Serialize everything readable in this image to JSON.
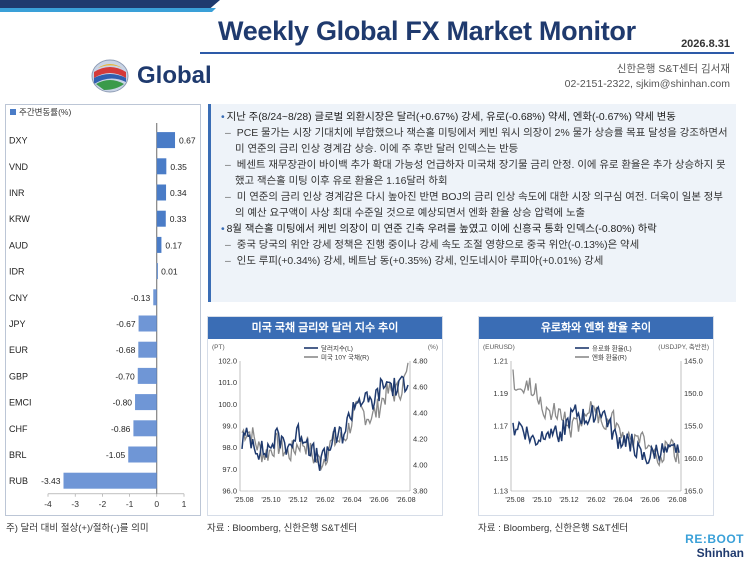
{
  "header": {
    "title": "Weekly Global FX Market Monitor",
    "date": "2026.8.31",
    "brand": "Global",
    "author_line1": "신한은행 S&T센터 김서재",
    "author_line2": "02-2151-2322, sjkim@shinhan.com"
  },
  "colors": {
    "navy": "#1f3a6e",
    "accent": "#3a6db5",
    "bar": "#4a7cc7",
    "bar_neg": "#6f96d6",
    "grey_line": "#8a8a8a"
  },
  "bar_chart": {
    "legend": "주간변동률(%)",
    "footnote": "주) 달러 대비 절상(+)/절하(-)를 의미"
  },
  "summary": {
    "items": [
      {
        "level": 1,
        "text": "지난 주(8/24~8/28) 글로벌 외환시장은 달러(+0.67%) 강세, 유로(-0.68%) 약세, 엔화(-0.67%) 약세 변동"
      },
      {
        "level": 2,
        "text": "PCE 물가는 시장 기대치에 부합했으나 잭슨홀 미팅에서 케빈 워시 의장이 2% 물가 상승률 목표 달성을 강조하면서 미 연준의 금리 인상 경계감 상승. 이에 주 후반 달러 인덱스는 반등"
      },
      {
        "level": 2,
        "text": "베센트 재무장관이 바이백 추가 확대 가능성 언급하자 미국채 장기물 금리 안정. 이에 유로 환율은 추가 상승하지 못했고 잭슨홀 미팅 이후 유로 환율은 1.16달러 하회"
      },
      {
        "level": 2,
        "text": "미 연준의 금리 인상 경계감은 다시 높아진 반면 BOJ의 금리 인상 속도에 대한 시장 의구심 여전. 더욱이 일본 정부의 예산 요구액이 사상 최대 수준일 것으로 예상되면서 엔화 환율 상승 압력에 노출"
      },
      {
        "level": 1,
        "text": "8월 잭슨홀 미팅에서 케빈 의장이 미 연준 긴축 우려를 높였고 이에 신흥국 통화 인덱스(-0.80%) 하락"
      },
      {
        "level": 2,
        "text": "중국 당국의 위안 강세 정책은 진행 중이나 강세 속도 조절 영향으로 중국 위안(-0.13%)은 약세"
      },
      {
        "level": 2,
        "text": "인도 루피(+0.34%) 강세, 베트남 동(+0.35%) 강세, 인도네시아 루피아(+0.01%) 강세"
      }
    ]
  },
  "panels": {
    "left_title": "미국 국채 금리와 달러 지수 추이",
    "right_title": "유로화와 엔화 환율 추이",
    "source_left": "자료 : Bloomberg, 신한은행 S&T센터",
    "source_right": "자료 : Bloomberg, 신한은행 S&T센터"
  },
  "logo": {
    "line1": "RE:BOOT",
    "line2": "Shinhan"
  },
  "chart_data": [
    {
      "type": "bar",
      "orientation": "horizontal",
      "legend": "주간변동률(%)",
      "categories": [
        "DXY",
        "VND",
        "INR",
        "KRW",
        "AUD",
        "IDR",
        "CNY",
        "JPY",
        "EUR",
        "GBP",
        "EMCI",
        "CHF",
        "BRL",
        "RUB"
      ],
      "values": [
        0.67,
        0.35,
        0.34,
        0.33,
        0.17,
        0.01,
        -0.13,
        -0.67,
        -0.68,
        -0.7,
        -0.8,
        -0.86,
        -1.05,
        -3.43
      ],
      "labels": [
        "0.67",
        "0.35",
        "0.34",
        "0.33",
        "0.17",
        "0.01",
        "-0.13",
        "-0.67",
        "-0.68",
        "-0.70",
        "-0.80",
        "-0.86",
        "-1.05",
        "-3.43"
      ],
      "xlim": [
        -4,
        1
      ],
      "xticks": [
        "-4",
        "-3",
        "-2",
        "-1",
        "0",
        "1"
      ]
    },
    {
      "type": "line",
      "left_unit": "(PT)",
      "right_unit": "(%)",
      "series": [
        {
          "name": "달러지수(L)",
          "axis": "left",
          "color": "#1f3a6e",
          "x": [
            "25.08",
            "25.10",
            "25.12",
            "26.02",
            "26.04",
            "26.06",
            "26.08"
          ],
          "values": [
            98.3,
            98.0,
            98.6,
            97.4,
            99.8,
            100.6,
            101.2
          ]
        },
        {
          "name": "미국 10Y 국채(R)",
          "axis": "right",
          "color": "#8a8a8a",
          "x": [
            "25.08",
            "25.10",
            "25.12",
            "26.02",
            "26.04",
            "26.06",
            "26.08"
          ],
          "values": [
            4.25,
            4.1,
            4.15,
            4.05,
            4.35,
            4.45,
            4.7
          ]
        }
      ],
      "left_ticks": [
        "102.0",
        "101.0",
        "100.0",
        "99.0",
        "98.0",
        "97.0",
        "96.0"
      ],
      "right_ticks": [
        "4.80",
        "4.60",
        "4.40",
        "4.20",
        "4.00",
        "3.80"
      ],
      "x_ticks": [
        "'25.08",
        "'25.10",
        "'25.12",
        "'26.02",
        "'26.04",
        "'26.06",
        "'26.08"
      ],
      "ylim_left": [
        96,
        102
      ],
      "ylim_right": [
        3.8,
        4.8
      ]
    },
    {
      "type": "line",
      "left_unit": "(EURUSD)",
      "right_unit": "(USDJPY, 축반전)",
      "series": [
        {
          "name": "유로화 환율(L)",
          "axis": "left",
          "color": "#1f3a6e",
          "x": [
            "25.08",
            "25.10",
            "25.12",
            "26.02",
            "26.04",
            "26.06",
            "26.08"
          ],
          "values": [
            1.168,
            1.163,
            1.172,
            1.18,
            1.16,
            1.15,
            1.158
          ]
        },
        {
          "name": "엔화 환율(R)",
          "axis": "right",
          "color": "#8a8a8a",
          "x": [
            "25.08",
            "25.10",
            "25.12",
            "26.02",
            "26.04",
            "26.06",
            "26.08"
          ],
          "values": [
            147.5,
            151.0,
            155.0,
            152.5,
            156.0,
            158.5,
            159.5
          ]
        }
      ],
      "left_ticks": [
        "1.21",
        "1.19",
        "1.17",
        "1.15",
        "1.13"
      ],
      "right_ticks": [
        "145.0",
        "150.0",
        "155.0",
        "160.0",
        "165.0"
      ],
      "x_ticks": [
        "'25.08",
        "'25.10",
        "'25.12",
        "'26.02",
        "'26.04",
        "'26.06",
        "'26.08"
      ],
      "ylim_left": [
        1.13,
        1.21
      ],
      "ylim_right": [
        145,
        165
      ],
      "right_inverted": true
    }
  ]
}
